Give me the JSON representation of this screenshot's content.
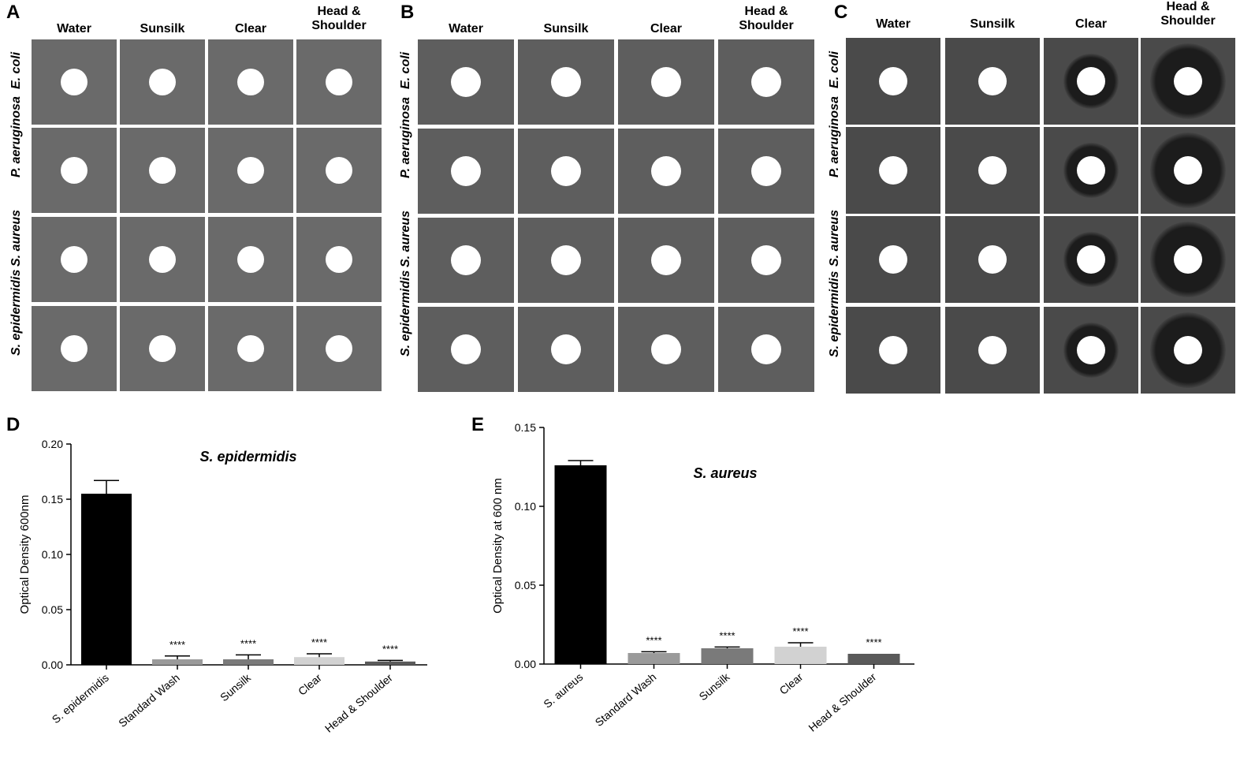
{
  "panels": {
    "A": {
      "letter": "A",
      "columns": [
        "Water",
        "Sunsilk",
        "Clear",
        "Head &\nShoulder"
      ],
      "rows": [
        "E. coli",
        "P. aeruginosa",
        "S. aureus",
        "S. epidermidis"
      ]
    },
    "B": {
      "letter": "B",
      "columns": [
        "Water",
        "Sunsilk",
        "Clear",
        "Head &\nShoulder"
      ],
      "rows": [
        "E. coli",
        "P. aeruginosa",
        "S. aureus",
        "S. epidermidis"
      ]
    },
    "C": {
      "letter": "C",
      "columns": [
        "Water",
        "Sunsilk",
        "Clear",
        "Head &\nShoulder"
      ],
      "rows": [
        "E. coli",
        "P. aeruginosa",
        "S. aureus",
        "S. epidermidis"
      ],
      "halos": [
        [
          false,
          false,
          true,
          true
        ],
        [
          false,
          false,
          true,
          true
        ],
        [
          false,
          false,
          true,
          true
        ],
        [
          false,
          false,
          true,
          true
        ]
      ]
    }
  },
  "colors": {
    "plate_A": "#6a6a6a",
    "plate_B": "#5e5e5e",
    "plate_C": "#4a4a4a",
    "disk": "#ffffff",
    "halo": "#1c1c1c"
  },
  "chart_data": [
    {
      "panel": "D",
      "type": "bar",
      "title": "S. epidermidis",
      "xlabel": "",
      "ylabel": "Optical Density 600nm",
      "ylim": [
        0,
        0.2
      ],
      "yticks": [
        "0.00",
        "0.05",
        "0.10",
        "0.15",
        "0.20"
      ],
      "categories": [
        "S. epidermidis",
        "Standard Wash",
        "Sunsilk",
        "Clear",
        "Head & Shoulder"
      ],
      "values": [
        0.155,
        0.005,
        0.005,
        0.007,
        0.003
      ],
      "errors": [
        0.012,
        0.003,
        0.004,
        0.003,
        0.001
      ],
      "annotations": [
        "",
        "****",
        "****",
        "****",
        "****"
      ],
      "colors": [
        "#000000",
        "#9a9a9a",
        "#7a7a7a",
        "#d2d2d2",
        "#5a5a5a"
      ]
    },
    {
      "panel": "E",
      "type": "bar",
      "title": "S. aureus",
      "xlabel": "",
      "ylabel": "Optical Density at 600 nm",
      "ylim": [
        0,
        0.15
      ],
      "yticks": [
        "0.00",
        "0.05",
        "0.10",
        "0.15"
      ],
      "categories": [
        "S. aureus",
        "Standard Wash",
        "Sunsilk",
        "Clear",
        "Head & Shoulder"
      ],
      "values": [
        0.126,
        0.007,
        0.01,
        0.011,
        0.0065
      ],
      "errors": [
        0.003,
        0.0008,
        0.0008,
        0.0025,
        0.0
      ],
      "annotations": [
        "",
        "****",
        "****",
        "****",
        "****"
      ],
      "colors": [
        "#000000",
        "#9a9a9a",
        "#7a7a7a",
        "#d2d2d2",
        "#5a5a5a"
      ]
    }
  ]
}
